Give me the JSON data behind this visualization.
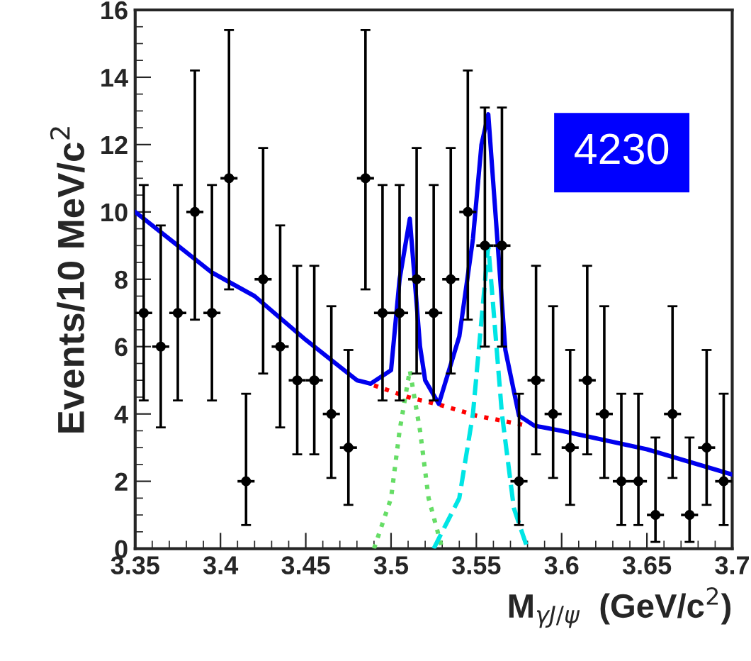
{
  "chart_data": {
    "type": "scatter",
    "xlabel": "M$_{γJ/ψ}$  (GeV/c$^{2}$)",
    "ylabel": "Events/10 MeV/c$^{2}$",
    "annotations": [
      "4230"
    ],
    "xlim": [
      3.35,
      3.7
    ],
    "xticks": [
      3.35,
      3.4,
      3.45,
      3.5,
      3.55,
      3.6,
      3.65,
      3.7
    ],
    "ylim": [
      0,
      16
    ],
    "yticks": [
      0,
      2,
      4,
      6,
      8,
      10,
      12,
      14,
      16
    ],
    "grid": false,
    "legend": false,
    "series": [
      {
        "color": "#000000",
        "marker": "circle",
        "x": [
          3.355,
          3.365,
          3.375,
          3.385,
          3.395,
          3.405,
          3.415,
          3.425,
          3.435,
          3.445,
          3.455,
          3.465,
          3.475,
          3.485,
          3.495,
          3.505,
          3.515,
          3.525,
          3.535,
          3.545,
          3.555,
          3.565,
          3.575,
          3.585,
          3.595,
          3.605,
          3.615,
          3.625,
          3.635,
          3.645,
          3.655,
          3.665,
          3.675,
          3.685,
          3.695
        ],
        "values": [
          7,
          6,
          7,
          10,
          7,
          11,
          2,
          8,
          6,
          5,
          5,
          4,
          3,
          11,
          7,
          7,
          8,
          7,
          8,
          10,
          9,
          9,
          2,
          5,
          4,
          3,
          5,
          4,
          2,
          2,
          1,
          4,
          1,
          3,
          2
        ],
        "errors": [
          [
            4.4,
            10.8
          ],
          [
            3.6,
            9.6
          ],
          [
            4.4,
            10.8
          ],
          [
            6.8,
            14.2
          ],
          [
            4.4,
            10.8
          ],
          [
            7.7,
            15.4
          ],
          [
            0.7,
            4.6
          ],
          [
            5.2,
            11.9
          ],
          [
            3.6,
            9.6
          ],
          [
            2.8,
            8.4
          ],
          [
            2.8,
            8.4
          ],
          [
            2.1,
            7.2
          ],
          [
            1.3,
            5.9
          ],
          [
            7.7,
            15.4
          ],
          [
            4.4,
            10.8
          ],
          [
            4.4,
            10.8
          ],
          [
            5.2,
            11.9
          ],
          [
            4.4,
            10.8
          ],
          [
            5.2,
            11.9
          ],
          [
            6.8,
            14.2
          ],
          [
            6.0,
            13.1
          ],
          [
            6.0,
            13.1
          ],
          [
            0.7,
            4.6
          ],
          [
            2.8,
            8.4
          ],
          [
            2.1,
            7.2
          ],
          [
            1.3,
            5.9
          ],
          [
            2.8,
            8.4
          ],
          [
            2.1,
            7.2
          ],
          [
            0.7,
            4.6
          ],
          [
            0.7,
            4.6
          ],
          [
            0.2,
            3.3
          ],
          [
            2.1,
            7.2
          ],
          [
            0.2,
            3.3
          ],
          [
            1.3,
            5.9
          ],
          [
            0.7,
            4.6
          ]
        ],
        "xerrors": [
          0.005,
          0.005,
          0.005,
          0.005,
          0.005,
          0.005,
          0.005,
          0.005,
          0.005,
          0.005,
          0.005,
          0.005,
          0.005,
          0.005,
          0.005,
          0.005,
          0.005,
          0.005,
          0.005,
          0.005,
          0.005,
          0.005,
          0.005,
          0.005,
          0.005,
          0.005,
          0.005,
          0.005,
          0.005,
          0.005,
          0.005,
          0.005,
          0.005,
          0.005,
          0.005
        ]
      },
      {
        "type": "line",
        "color": "#ff0000",
        "line_style": "dotted",
        "x": [
          3.49,
          3.51,
          3.53,
          3.55,
          3.58
        ],
        "values": [
          4.85,
          4.5,
          4.25,
          3.95,
          3.65
        ]
      },
      {
        "type": "line",
        "color": "#66dd66",
        "line_style": "dotted",
        "x": [
          3.49,
          3.5,
          3.505,
          3.511,
          3.517,
          3.522,
          3.53
        ],
        "values": [
          0,
          1.5,
          3.5,
          5.3,
          3.5,
          1.5,
          0
        ]
      },
      {
        "type": "line",
        "color": "#00e5e5",
        "line_style": "dashed",
        "x": [
          3.525,
          3.54,
          3.548,
          3.557,
          3.565,
          3.572,
          3.58
        ],
        "values": [
          0,
          1.5,
          4,
          9,
          4,
          1.2,
          0
        ]
      },
      {
        "type": "line",
        "color": "#0000ee",
        "line_style": "solid",
        "x": [
          3.35,
          3.395,
          3.42,
          3.45,
          3.48,
          3.488,
          3.5,
          3.505,
          3.511,
          3.517,
          3.52,
          3.528,
          3.54,
          3.548,
          3.553,
          3.557,
          3.567,
          3.575,
          3.584,
          3.6,
          3.65,
          3.7
        ],
        "values": [
          10,
          8.2,
          7.5,
          6.2,
          5.0,
          4.9,
          5.3,
          8,
          9.8,
          6,
          5,
          4.3,
          6.3,
          9.2,
          12,
          12.9,
          5.9,
          3.95,
          3.65,
          3.5,
          2.95,
          2.2
        ]
      }
    ]
  }
}
